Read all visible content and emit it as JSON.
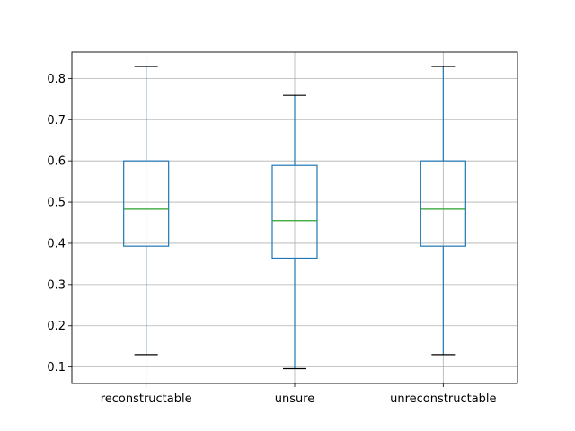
{
  "chart_data": {
    "type": "box",
    "title": "",
    "xlabel": "",
    "ylabel": "",
    "categories": [
      "reconstructable",
      "unsure",
      "unreconstructable"
    ],
    "boxes": [
      {
        "label": "reconstructable",
        "whisker_low": 0.13,
        "q1": 0.393,
        "median": 0.483,
        "q3": 0.6,
        "whisker_high": 0.829
      },
      {
        "label": "unsure",
        "whisker_low": 0.096,
        "q1": 0.364,
        "median": 0.455,
        "q3": 0.589,
        "whisker_high": 0.759
      },
      {
        "label": "unreconstructable",
        "whisker_low": 0.13,
        "q1": 0.393,
        "median": 0.483,
        "q3": 0.6,
        "whisker_high": 0.829
      }
    ],
    "ylim": [
      0.06,
      0.864
    ],
    "yticks": [
      "0.1",
      "0.2",
      "0.3",
      "0.4",
      "0.5",
      "0.6",
      "0.7",
      "0.8"
    ],
    "grid": true,
    "colors": {
      "box": "#1f77b4",
      "median": "#2ca02c",
      "caps": "#000000",
      "grid": "#b0b0b0"
    }
  }
}
